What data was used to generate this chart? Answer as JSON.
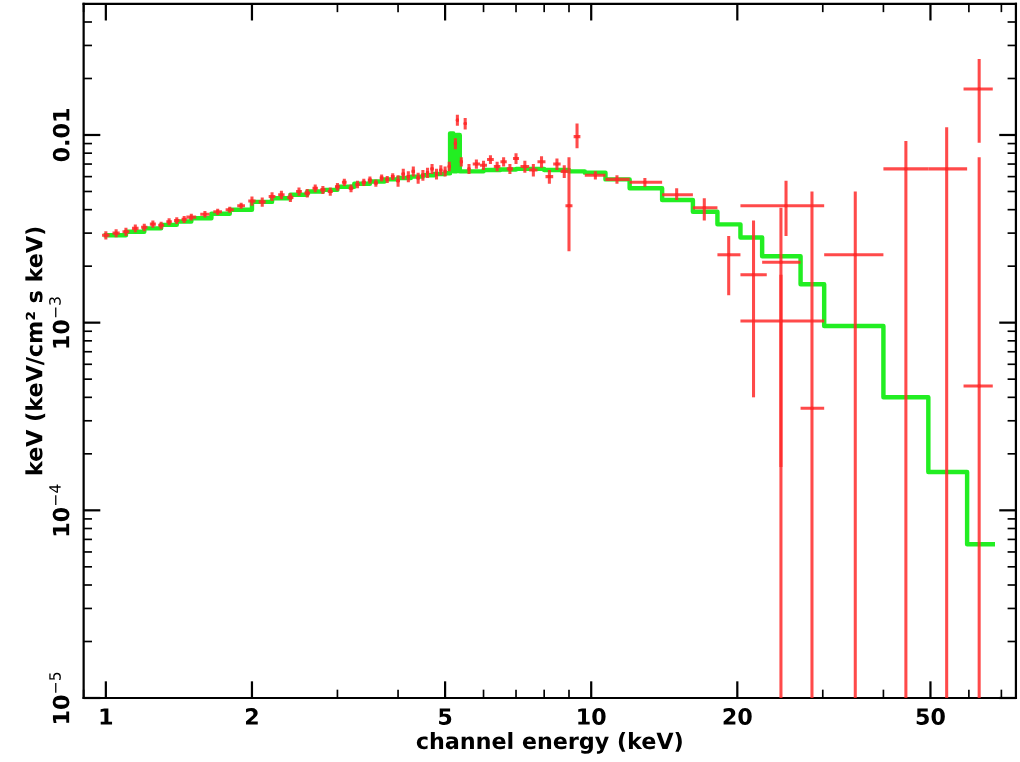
{
  "chart_data": {
    "type": "scatter",
    "log": "xy",
    "xlabel": "channel energy (keV)",
    "ylabel": "keV (keV/cm² s keV)",
    "xlim": [
      0.9,
      75
    ],
    "ylim": [
      1e-05,
      0.05
    ],
    "xticks": [
      1,
      2,
      5,
      10,
      20,
      50
    ],
    "yticks": [
      {
        "value": 1e-05,
        "label": "10$^{−5}$"
      },
      {
        "value": 0.0001,
        "label": "10$^{−4}$"
      },
      {
        "value": 0.001,
        "label": "10$^{−3}$"
      },
      0.01
    ],
    "series": [
      {
        "color": "#ff2a2a",
        "x": [
          1.0,
          1.05,
          1.1,
          1.15,
          1.2,
          1.25,
          1.3,
          1.35,
          1.4,
          1.45,
          1.5,
          1.6,
          1.7,
          1.8,
          1.9,
          2.0,
          2.1,
          2.2,
          2.3,
          2.4,
          2.5,
          2.6,
          2.7,
          2.8,
          2.9,
          3.0,
          3.1,
          3.2,
          3.3,
          3.4,
          3.5,
          3.6,
          3.7,
          3.8,
          3.9,
          4.0,
          4.1,
          4.2,
          4.3,
          4.4,
          4.5,
          4.6,
          4.7,
          4.8,
          4.9,
          5.0,
          5.1,
          5.25,
          5.3,
          5.4,
          5.5,
          5.6,
          5.8,
          6.0,
          6.2,
          6.4,
          6.6,
          6.8,
          7.0,
          7.3,
          7.6,
          7.9,
          8.2,
          8.5,
          8.8,
          9.0,
          9.35,
          10.2,
          11.3,
          12.9,
          15.0,
          17.1,
          19.2,
          21.6,
          25.2,
          24.6,
          24.6,
          28.5,
          35,
          44.5,
          54,
          63,
          63
        ],
        "values": [
          0.00292,
          0.003,
          0.00305,
          0.00318,
          0.00322,
          0.00335,
          0.0033,
          0.00345,
          0.0035,
          0.00355,
          0.00365,
          0.00378,
          0.0039,
          0.004,
          0.0042,
          0.00445,
          0.0044,
          0.0047,
          0.0048,
          0.00465,
          0.005,
          0.0049,
          0.0052,
          0.0051,
          0.005,
          0.0053,
          0.0056,
          0.0052,
          0.00545,
          0.0056,
          0.00575,
          0.00555,
          0.0059,
          0.0058,
          0.006,
          0.0057,
          0.0062,
          0.006,
          0.0064,
          0.0059,
          0.0061,
          0.0063,
          0.0066,
          0.0062,
          0.0065,
          0.0064,
          0.0068,
          0.009,
          0.012,
          0.0072,
          0.0115,
          0.0066,
          0.007,
          0.0069,
          0.0074,
          0.0068,
          0.0072,
          0.0066,
          0.0075,
          0.0068,
          0.0065,
          0.0072,
          0.006,
          0.007,
          0.0064,
          0.0042,
          0.0098,
          0.0061,
          0.0058,
          0.0056,
          0.0048,
          0.0041,
          0.0023,
          0.0018,
          0.0042,
          0.0021,
          0.00102,
          0.00035,
          0.0023,
          0.0066,
          0.0066,
          0.0176,
          0.00046
        ],
        "errors": [
          0.00015,
          0.00015,
          0.00015,
          0.00015,
          0.00015,
          0.00015,
          0.00015,
          0.00015,
          0.00015,
          0.00015,
          0.00015,
          0.00015,
          0.00015,
          0.00015,
          0.00015,
          0.00025,
          0.00025,
          0.00025,
          0.00025,
          0.00025,
          0.00025,
          0.00025,
          0.00025,
          0.00025,
          0.00025,
          0.00025,
          0.00025,
          0.00025,
          0.00025,
          0.00025,
          0.00025,
          0.00025,
          0.00025,
          0.00025,
          0.00025,
          0.0004,
          0.0004,
          0.0004,
          0.0004,
          0.0004,
          0.0004,
          0.0004,
          0.0004,
          0.0004,
          0.0004,
          0.0004,
          0.0004,
          0.0006,
          0.0008,
          0.0004,
          0.0008,
          0.0004,
          0.0004,
          0.0004,
          0.0004,
          0.0004,
          0.0004,
          0.0004,
          0.0005,
          0.0005,
          0.0005,
          0.0005,
          0.0005,
          0.0005,
          0.0005,
          [
            0.0024,
            0.0076
          ],
          [
            0.0085,
            0.0115
          ],
          [
            0.0058,
            0.0064
          ],
          [
            0.0055,
            0.0061
          ],
          [
            0.0053,
            0.0059
          ],
          [
            0.0045,
            0.0052
          ],
          [
            0.0035,
            0.0046
          ],
          [
            0.0014,
            0.0029
          ],
          [
            0.0004,
            0.0035
          ],
          [
            0.0029,
            0.0057
          ],
          [
            0.00017,
            0.0041
          ],
          [
            1e-05,
            0.0018
          ],
          [
            1e-05,
            0.005
          ],
          [
            1e-05,
            0.005
          ],
          [
            1e-05,
            0.0093
          ],
          [
            1e-05,
            0.011
          ],
          [
            0.0091,
            0.0254
          ],
          [
            1e-05,
            0.0076
          ]
        ],
        "xerrors": [
          0.018,
          0.018,
          0.018,
          0.018,
          0.018,
          0.018,
          0.018,
          0.018,
          0.018,
          0.018,
          0.035,
          0.035,
          0.035,
          0.035,
          0.035,
          0.035,
          0.035,
          0.035,
          0.035,
          0.035,
          0.035,
          0.035,
          0.035,
          0.035,
          0.035,
          0.035,
          0.035,
          0.035,
          0.035,
          0.035,
          0.035,
          0.035,
          0.035,
          0.035,
          0.035,
          0.035,
          0.035,
          0.035,
          0.035,
          0.035,
          0.035,
          0.035,
          0.035,
          0.035,
          0.035,
          0.035,
          0.035,
          0.035,
          0.035,
          0.035,
          0.035,
          0.035,
          0.1,
          0.1,
          0.1,
          0.1,
          0.1,
          0.1,
          0.1,
          0.15,
          0.15,
          0.15,
          0.15,
          0.15,
          0.15,
          0.15,
          0.15,
          [
            9.7,
            10.7
          ],
          [
            10.7,
            12.0
          ],
          [
            12.0,
            14.0
          ],
          [
            14.0,
            16.2
          ],
          [
            16.2,
            18.2
          ],
          [
            18.2,
            20.3
          ],
          [
            20.3,
            23.0
          ],
          [
            20.3,
            30.2
          ],
          [
            22.5,
            27.0
          ],
          [
            20.3,
            30.2
          ],
          [
            27.0,
            30.2
          ],
          [
            30.2,
            40
          ],
          [
            40,
            49.5
          ],
          [
            49.5,
            59.5
          ],
          [
            58.5,
            67.2
          ],
          [
            58.5,
            67.2
          ]
        ]
      },
      {
        "type": "step",
        "color": "#22ee22",
        "x": [
          1.0,
          1.1,
          1.2,
          1.3,
          1.4,
          1.5,
          1.65,
          1.8,
          2.0,
          2.2,
          2.4,
          2.6,
          2.8,
          3.0,
          3.25,
          3.5,
          3.75,
          4.0,
          4.25,
          4.5,
          4.75,
          5,
          5.12,
          5.2,
          5.28,
          5.36,
          5.5,
          6,
          6.5,
          7,
          8,
          9,
          9.7,
          10.7,
          12.0,
          14.0,
          16.2,
          18.2,
          20.3,
          22.5,
          27.0,
          30.2,
          40,
          49.5,
          59.5,
          67.2
        ],
        "values": [
          0.00292,
          0.00305,
          0.00318,
          0.00332,
          0.00346,
          0.0036,
          0.0038,
          0.004,
          0.0044,
          0.0046,
          0.0048,
          0.005,
          0.0051,
          0.0053,
          0.0055,
          0.00565,
          0.0058,
          0.0059,
          0.006,
          0.0061,
          0.0062,
          0.00625,
          0.0102,
          0.0064,
          0.01,
          0.0064,
          0.0064,
          0.0065,
          0.00655,
          0.0066,
          0.0065,
          0.0064,
          0.0063,
          0.0058,
          0.0052,
          0.0045,
          0.0039,
          0.00334,
          0.00284,
          0.00226,
          0.0016,
          0.00096,
          0.0004,
          0.00016,
          6.6e-05,
          6.6e-05
        ]
      }
    ]
  }
}
